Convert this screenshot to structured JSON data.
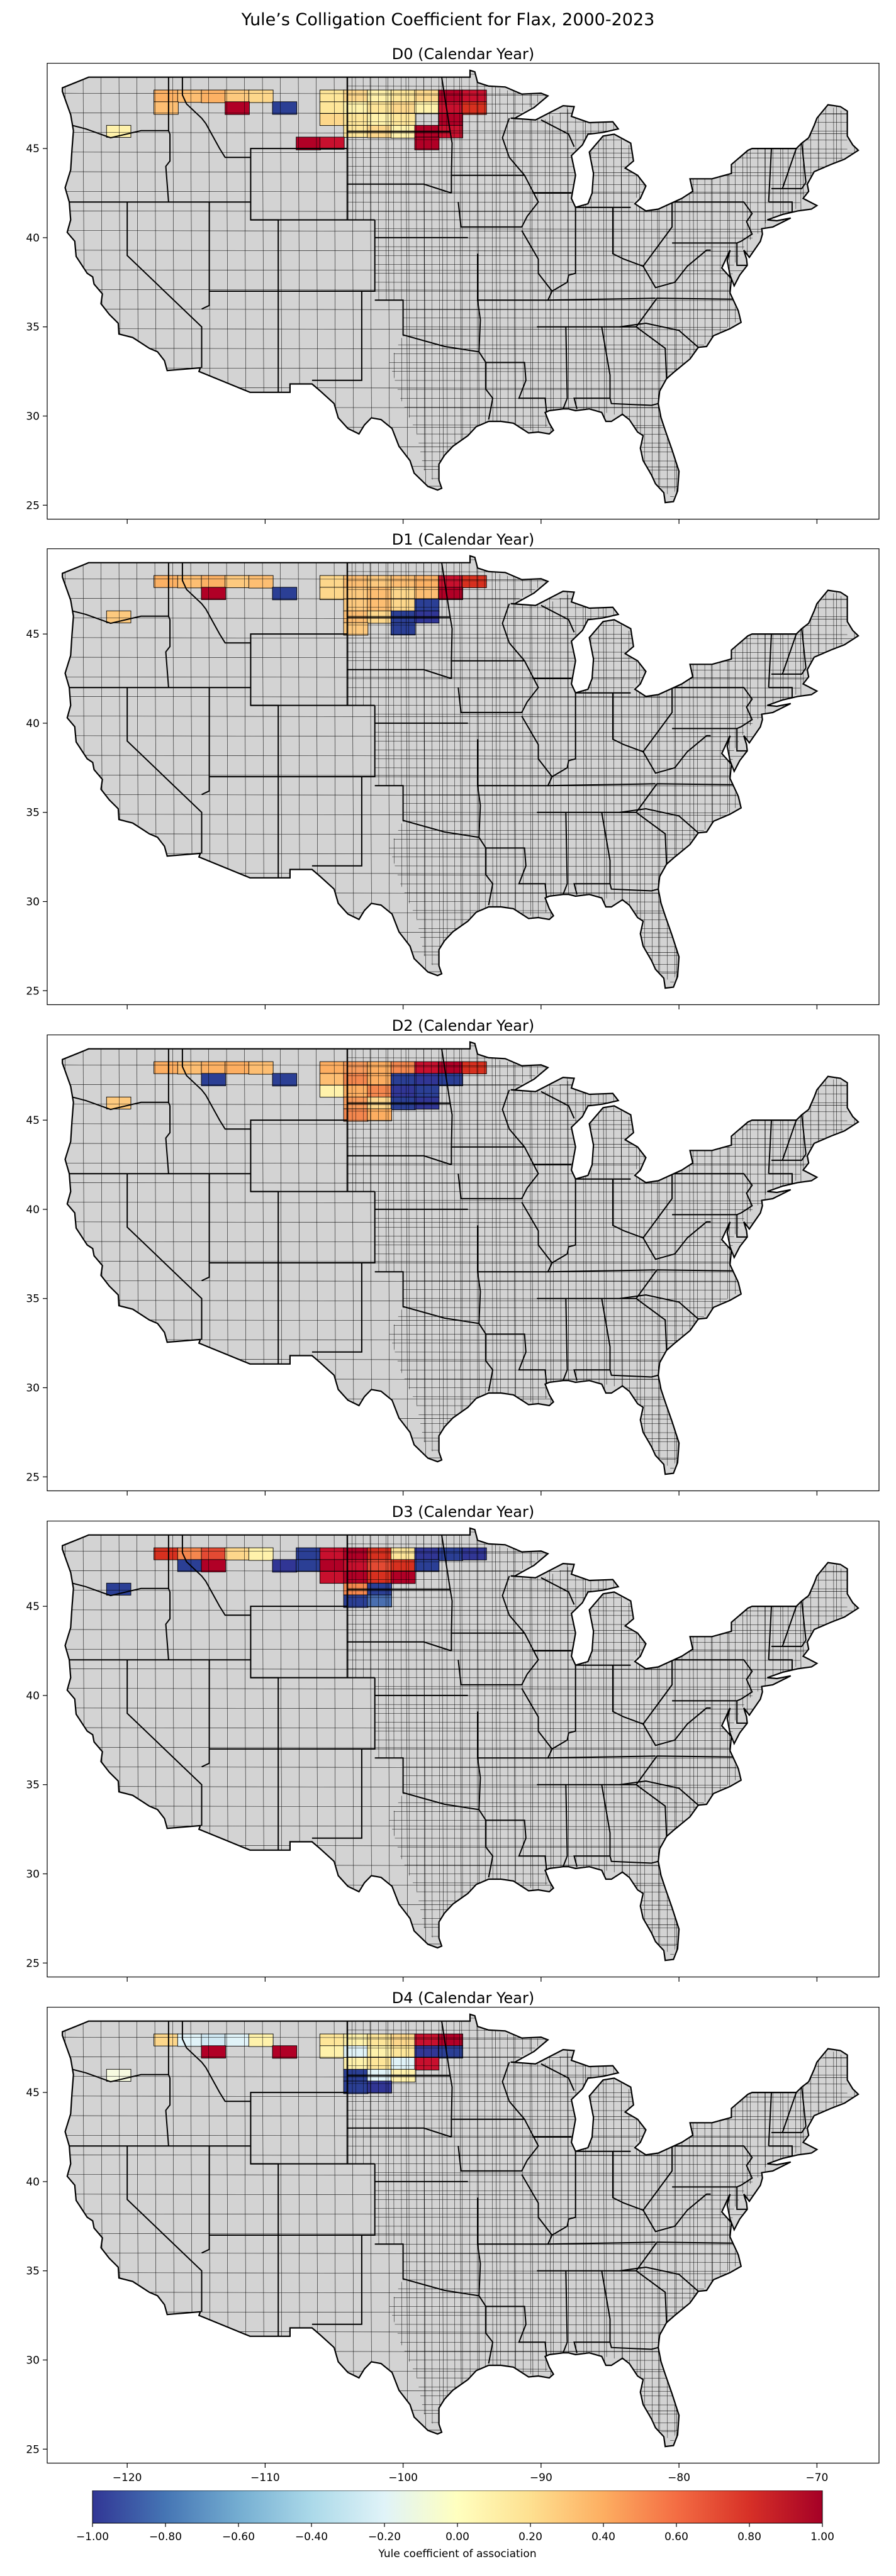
{
  "figure": {
    "title": "Yule’s Colligation Coefficient for Flax, 2000-2023"
  },
  "panels": [
    {
      "title": "D0 (Calendar Year)",
      "hot": [
        [
          2,
          2,
          "#fcb164"
        ],
        [
          3,
          2,
          "#fdbe72"
        ],
        [
          4,
          2,
          "#fcb164"
        ],
        [
          5,
          2,
          "#fdc97e"
        ],
        [
          6,
          2,
          "#fdd78b"
        ],
        [
          9,
          2,
          "#fee699"
        ],
        [
          10,
          2,
          "#fdd78b"
        ],
        [
          11,
          2,
          "#fff2ab"
        ],
        [
          12,
          2,
          "#fee699"
        ],
        [
          13,
          2,
          "#fdd78b"
        ],
        [
          14,
          2,
          "#b10026"
        ],
        [
          15,
          2,
          "#c8102e"
        ],
        [
          2,
          3,
          "#fdbe72"
        ],
        [
          5,
          3,
          "#b10026"
        ],
        [
          7,
          3,
          "#2b3f95"
        ],
        [
          9,
          3,
          "#fee699"
        ],
        [
          10,
          3,
          "#fff2ab"
        ],
        [
          11,
          3,
          "#fee699"
        ],
        [
          12,
          3,
          "#fdd78b"
        ],
        [
          13,
          3,
          "#fff2ab"
        ],
        [
          14,
          3,
          "#c8102e"
        ],
        [
          15,
          3,
          "#d7301f"
        ],
        [
          9,
          4,
          "#fdd78b"
        ],
        [
          10,
          4,
          "#fee699"
        ],
        [
          11,
          4,
          "#fff2ab"
        ],
        [
          12,
          4,
          "#fee699"
        ],
        [
          14,
          4,
          "#b10026"
        ],
        [
          0,
          5,
          "#fff2ab"
        ],
        [
          10,
          5,
          "#fee699"
        ],
        [
          11,
          5,
          "#fdd78b"
        ],
        [
          12,
          5,
          "#fff2ab"
        ],
        [
          13,
          5,
          "#b10026"
        ],
        [
          14,
          5,
          "#c8102e"
        ],
        [
          8,
          6,
          "#b10026"
        ],
        [
          9,
          6,
          "#c8102e"
        ],
        [
          13,
          6,
          "#b10026"
        ]
      ]
    },
    {
      "title": "D1 (Calendar Year)",
      "hot": [
        [
          2,
          2,
          "#fcb164"
        ],
        [
          3,
          2,
          "#fdbe72"
        ],
        [
          4,
          2,
          "#fcb164"
        ],
        [
          5,
          2,
          "#fdc97e"
        ],
        [
          6,
          2,
          "#fdbe72"
        ],
        [
          9,
          2,
          "#fdd78b"
        ],
        [
          10,
          2,
          "#fdbe72"
        ],
        [
          11,
          2,
          "#fdc97e"
        ],
        [
          12,
          2,
          "#fdbe72"
        ],
        [
          13,
          2,
          "#fcb164"
        ],
        [
          14,
          2,
          "#c8102e"
        ],
        [
          15,
          2,
          "#d7301f"
        ],
        [
          4,
          3,
          "#b10026"
        ],
        [
          7,
          3,
          "#2b3f95"
        ],
        [
          9,
          3,
          "#fdd78b"
        ],
        [
          10,
          3,
          "#fdc97e"
        ],
        [
          11,
          3,
          "#fdbe72"
        ],
        [
          12,
          3,
          "#fdd78b"
        ],
        [
          13,
          3,
          "#fdbe72"
        ],
        [
          14,
          3,
          "#b10026"
        ],
        [
          10,
          4,
          "#fdc97e"
        ],
        [
          11,
          4,
          "#fdbe72"
        ],
        [
          12,
          4,
          "#fdd78b"
        ],
        [
          13,
          4,
          "#2b3f95"
        ],
        [
          0,
          5,
          "#fdc97e"
        ],
        [
          10,
          5,
          "#fdbe72"
        ],
        [
          11,
          5,
          "#fdd78b"
        ],
        [
          12,
          5,
          "#2b3f95"
        ],
        [
          13,
          5,
          "#313695"
        ],
        [
          10,
          6,
          "#fdc97e"
        ],
        [
          12,
          6,
          "#2b3f95"
        ]
      ]
    },
    {
      "title": "D2 (Calendar Year)",
      "hot": [
        [
          2,
          2,
          "#fdae61"
        ],
        [
          3,
          2,
          "#fdbe72"
        ],
        [
          4,
          2,
          "#fcb164"
        ],
        [
          5,
          2,
          "#fdae61"
        ],
        [
          6,
          2,
          "#fdbe72"
        ],
        [
          9,
          2,
          "#fdae61"
        ],
        [
          10,
          2,
          "#f79a5b"
        ],
        [
          11,
          2,
          "#fdae61"
        ],
        [
          12,
          2,
          "#f4874e"
        ],
        [
          13,
          2,
          "#c8102e"
        ],
        [
          14,
          2,
          "#b10026"
        ],
        [
          15,
          2,
          "#d7301f"
        ],
        [
          4,
          3,
          "#2b3f95"
        ],
        [
          7,
          3,
          "#2b3f95"
        ],
        [
          9,
          3,
          "#fdbe72"
        ],
        [
          10,
          3,
          "#f4874e"
        ],
        [
          11,
          3,
          "#fdae61"
        ],
        [
          12,
          3,
          "#2b3f95"
        ],
        [
          13,
          3,
          "#313695"
        ],
        [
          14,
          3,
          "#2b3f95"
        ],
        [
          9,
          4,
          "#fff2ab"
        ],
        [
          10,
          4,
          "#fdae61"
        ],
        [
          11,
          4,
          "#f4874e"
        ],
        [
          12,
          4,
          "#313695"
        ],
        [
          13,
          4,
          "#2b3f95"
        ],
        [
          0,
          5,
          "#fdc97e"
        ],
        [
          10,
          5,
          "#f79a5b"
        ],
        [
          11,
          5,
          "#fdd78b"
        ],
        [
          12,
          5,
          "#2b3f95"
        ],
        [
          13,
          5,
          "#313695"
        ],
        [
          10,
          6,
          "#f4874e"
        ],
        [
          11,
          6,
          "#fdae61"
        ]
      ]
    },
    {
      "title": "D3 (Calendar Year)",
      "hot": [
        [
          2,
          2,
          "#d7301f"
        ],
        [
          3,
          2,
          "#f4874e"
        ],
        [
          4,
          2,
          "#e34a33"
        ],
        [
          5,
          2,
          "#fdd78b"
        ],
        [
          6,
          2,
          "#fff2ab"
        ],
        [
          8,
          2,
          "#2b3f95"
        ],
        [
          9,
          2,
          "#c8102e"
        ],
        [
          10,
          2,
          "#b10026"
        ],
        [
          11,
          2,
          "#d7301f"
        ],
        [
          12,
          2,
          "#fee699"
        ],
        [
          13,
          2,
          "#313695"
        ],
        [
          14,
          2,
          "#2b3f95"
        ],
        [
          15,
          2,
          "#313695"
        ],
        [
          3,
          3,
          "#2b3f95"
        ],
        [
          4,
          3,
          "#b10026"
        ],
        [
          7,
          3,
          "#313695"
        ],
        [
          8,
          3,
          "#2b3f95"
        ],
        [
          9,
          3,
          "#b10026"
        ],
        [
          10,
          3,
          "#c8102e"
        ],
        [
          11,
          3,
          "#e34a33"
        ],
        [
          12,
          3,
          "#d7301f"
        ],
        [
          13,
          3,
          "#2b3f95"
        ],
        [
          9,
          4,
          "#c8102e"
        ],
        [
          10,
          4,
          "#b10026"
        ],
        [
          11,
          4,
          "#d7301f"
        ],
        [
          12,
          4,
          "#b10026"
        ],
        [
          0,
          5,
          "#2b3f95"
        ],
        [
          10,
          5,
          "#f4874e"
        ],
        [
          11,
          5,
          "#2b3f95"
        ],
        [
          10,
          6,
          "#2b3f95"
        ],
        [
          11,
          6,
          "#4a6fb0"
        ]
      ]
    },
    {
      "title": "D4 (Calendar Year)",
      "hot": [
        [
          2,
          2,
          "#fdd78b"
        ],
        [
          3,
          2,
          "#e0f3f8"
        ],
        [
          4,
          2,
          "#d0e8f2"
        ],
        [
          5,
          2,
          "#e0f3f8"
        ],
        [
          6,
          2,
          "#fff2ab"
        ],
        [
          9,
          2,
          "#fee699"
        ],
        [
          10,
          2,
          "#fff2ab"
        ],
        [
          11,
          2,
          "#fee699"
        ],
        [
          12,
          2,
          "#fdd78b"
        ],
        [
          13,
          2,
          "#c8102e"
        ],
        [
          14,
          2,
          "#b10026"
        ],
        [
          4,
          3,
          "#b10026"
        ],
        [
          7,
          3,
          "#b10026"
        ],
        [
          9,
          3,
          "#fff2ab"
        ],
        [
          10,
          3,
          "#e0f3f8"
        ],
        [
          11,
          3,
          "#fff2ab"
        ],
        [
          12,
          3,
          "#fee699"
        ],
        [
          13,
          3,
          "#313695"
        ],
        [
          14,
          3,
          "#2b3f95"
        ],
        [
          10,
          4,
          "#fff2ab"
        ],
        [
          11,
          4,
          "#fee699"
        ],
        [
          12,
          4,
          "#e0f3f8"
        ],
        [
          13,
          4,
          "#c8102e"
        ],
        [
          0,
          5,
          "#f7fbe0"
        ],
        [
          10,
          5,
          "#2b3f95"
        ],
        [
          11,
          5,
          "#e0f3f8"
        ],
        [
          12,
          5,
          "#fff2ab"
        ],
        [
          10,
          6,
          "#2b3f95"
        ],
        [
          11,
          6,
          "#313695"
        ]
      ]
    }
  ],
  "axes": {
    "x_ticks": [
      -120,
      -110,
      -100,
      -90,
      -80,
      -70
    ],
    "x_tick_labels": [
      "−120",
      "−110",
      "−100",
      "−90",
      "−80",
      "−70"
    ],
    "y_ticks": [
      25,
      30,
      35,
      40,
      45
    ],
    "y_tick_labels": [
      "25",
      "30",
      "35",
      "40",
      "45"
    ],
    "x_range": [
      -125.8,
      -65.5
    ],
    "y_range": [
      24.2,
      49.8
    ]
  },
  "colorbar": {
    "label": "Yule coefficient of association",
    "ticks": [
      -1.0,
      -0.8,
      -0.6,
      -0.4,
      -0.2,
      0.0,
      0.2,
      0.4,
      0.6,
      0.8,
      1.0
    ],
    "tick_labels": [
      "−1.00",
      "−0.80",
      "−0.60",
      "−0.40",
      "−0.20",
      "0.00",
      "0.20",
      "0.40",
      "0.60",
      "0.80",
      "1.00"
    ],
    "colormap": "RdYlBu_r",
    "colors": [
      "#313695",
      "#4575b4",
      "#74add1",
      "#abd9e9",
      "#e0f3f8",
      "#ffffbf",
      "#fee090",
      "#fdae61",
      "#f46d43",
      "#d73027",
      "#a50026"
    ]
  },
  "colors": {
    "no_data": "#d3d3d3",
    "county_edge": "#000000"
  }
}
